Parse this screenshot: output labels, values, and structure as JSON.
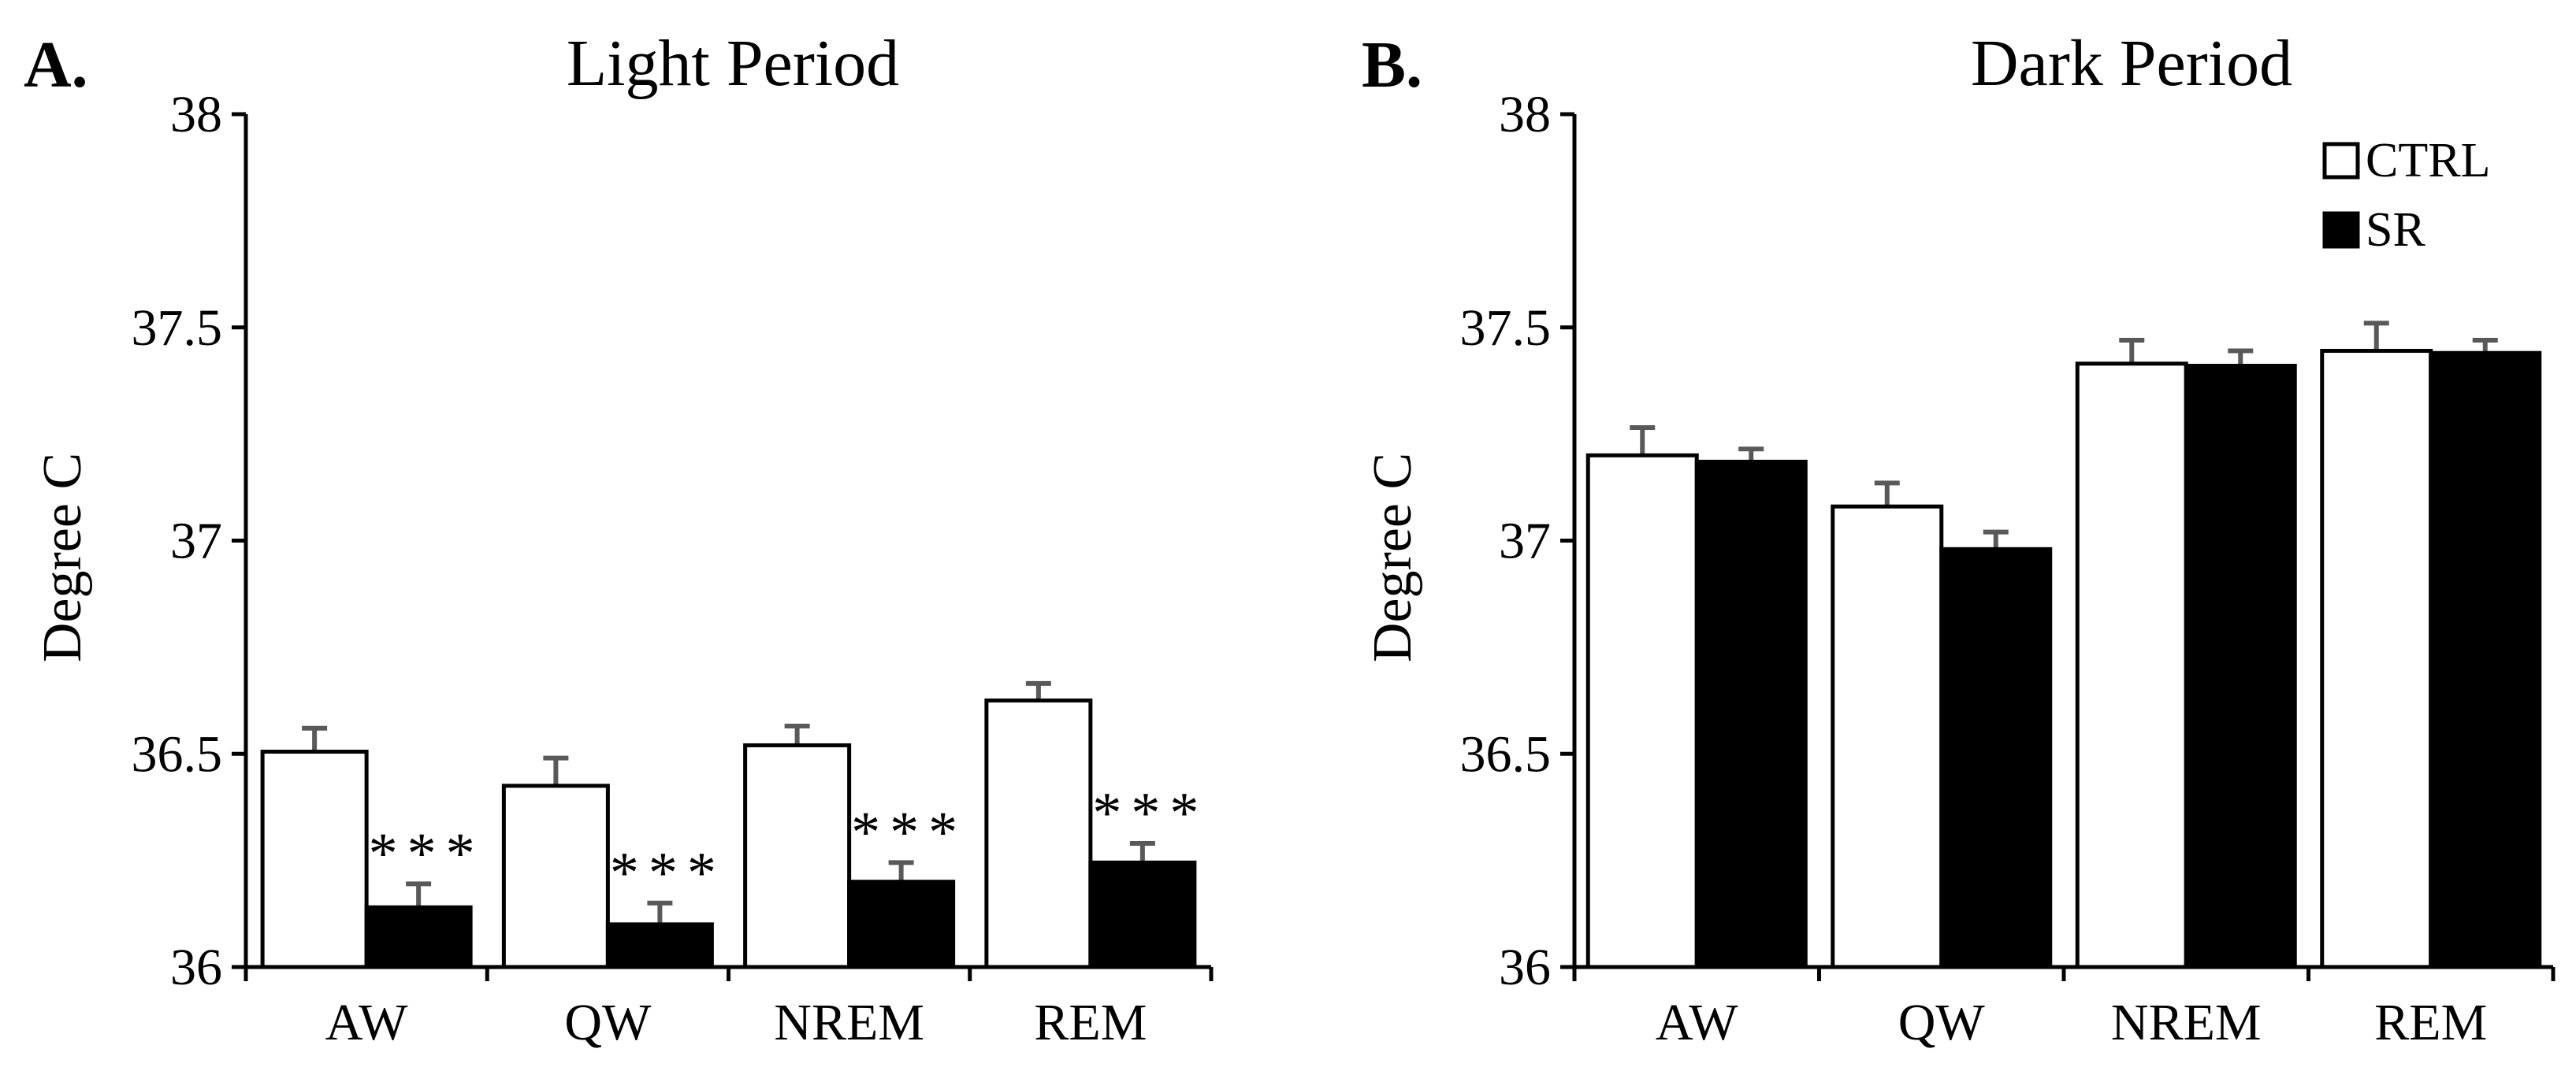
{
  "chart_data": [
    {
      "panel": "A.",
      "type": "bar",
      "title": "Light Period",
      "ylabel": "Degree C",
      "xlabel": "",
      "ylim": [
        36,
        38
      ],
      "yticks": [
        "36",
        "36.5",
        "37",
        "37.5",
        "38"
      ],
      "categories": [
        "AW",
        "QW",
        "NREM",
        "REM"
      ],
      "series": [
        {
          "name": "CTRL",
          "fill": "#ffffff",
          "values": [
            36.505,
            36.425,
            36.52,
            36.625
          ],
          "errors": [
            0.055,
            0.065,
            0.045,
            0.04
          ]
        },
        {
          "name": "SR",
          "fill": "#000000",
          "values": [
            36.14,
            36.1,
            36.2,
            36.245
          ],
          "errors": [
            0.055,
            0.05,
            0.045,
            0.045
          ]
        }
      ],
      "significance": [
        "***",
        "***",
        "***",
        "***"
      ],
      "legend": false
    },
    {
      "panel": "B.",
      "type": "bar",
      "title": "Dark Period",
      "ylabel": "Degree C",
      "xlabel": "",
      "ylim": [
        36,
        38
      ],
      "yticks": [
        "36",
        "36.5",
        "37",
        "37.5",
        "38"
      ],
      "categories": [
        "AW",
        "QW",
        "NREM",
        "REM"
      ],
      "series": [
        {
          "name": "CTRL",
          "fill": "#ffffff",
          "values": [
            37.2,
            37.08,
            37.415,
            37.445
          ],
          "errors": [
            0.065,
            0.055,
            0.055,
            0.065
          ]
        },
        {
          "name": "SR",
          "fill": "#000000",
          "values": [
            37.185,
            36.98,
            37.41,
            37.44
          ],
          "errors": [
            0.03,
            0.04,
            0.035,
            0.03
          ]
        }
      ],
      "significance": [
        "",
        "",
        "",
        ""
      ],
      "legend": true,
      "legend_position": "top-right"
    }
  ],
  "colors": {
    "axis": "#000000",
    "error_bar": "#595959",
    "bar_stroke": "#000000"
  }
}
